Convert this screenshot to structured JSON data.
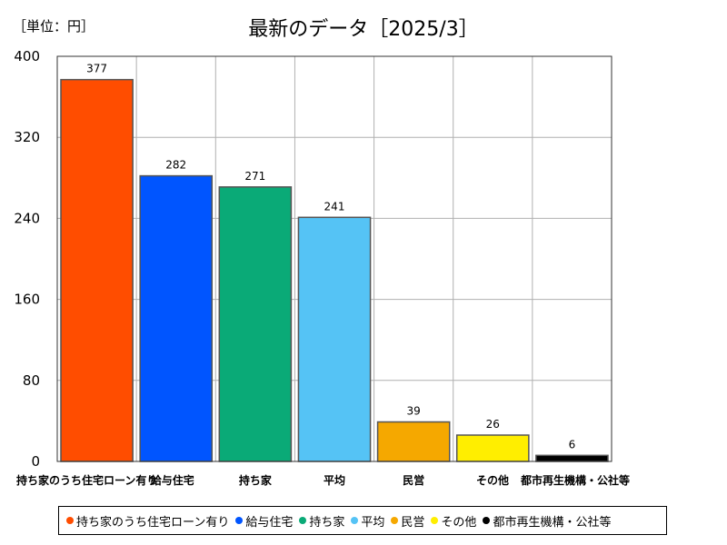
{
  "unit_label": "［単位：円］",
  "colors": {
    "持ち家のうち住宅ローン有り": "#ff4d00",
    "給与住宅": "#0055ff",
    "持ち家": "#0aaa77",
    "平均": "#55c3f5",
    "民営": "#f5a800",
    "その他": "#ffee00",
    "都市再生機構・公社等": "#000000"
  },
  "chart_data": {
    "type": "bar",
    "title": "最新のデータ［2025/3］",
    "categories": [
      "持ち家のうち住宅ローン有り",
      "給与住宅",
      "持ち家",
      "平均",
      "民営",
      "その他",
      "都市再生機構・公社等"
    ],
    "values": [
      377,
      282,
      271,
      241,
      39,
      26,
      6
    ],
    "ylim": [
      0,
      400
    ],
    "yticks": [
      0,
      80,
      160,
      240,
      320,
      400
    ],
    "xlabel": "",
    "ylabel": "",
    "grid": true,
    "legend": "bottom"
  }
}
